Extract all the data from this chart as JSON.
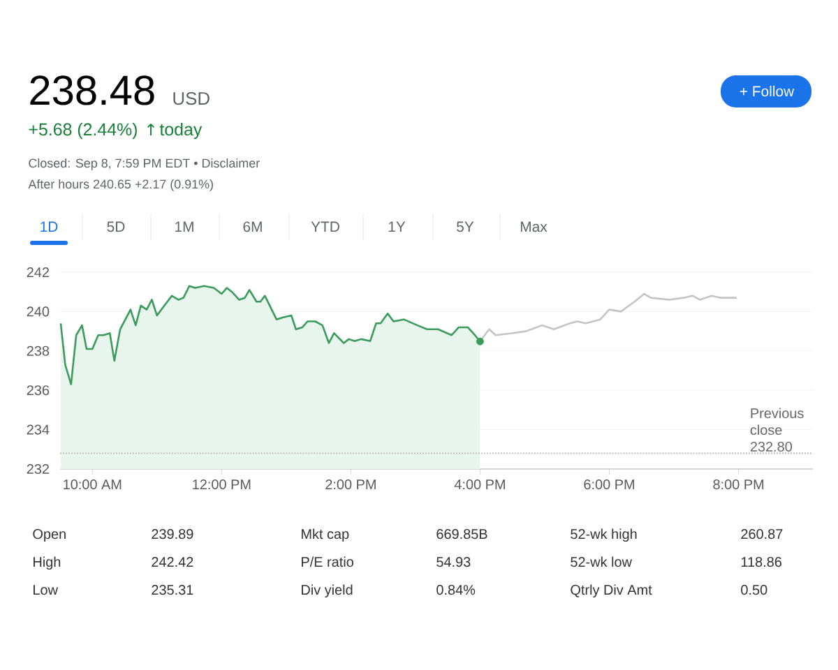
{
  "chart_data": {
    "type": "line",
    "title": "238.48",
    "annotations": [
      "USD",
      "+5.68 (2.44%)",
      "↑",
      "today",
      "Closed: Sep 8, 7:59 PM EDT • Disclaimer",
      "After hours 240.65 +2.17 (0.91%)",
      "+ Follow",
      "1D",
      "5D",
      "1M",
      "6M",
      "YTD",
      "1Y",
      "5Y",
      "Max",
      "Open",
      "239.89",
      "Mkt cap",
      "669.85B",
      "52-wk high",
      "260.87",
      "High",
      "242.42",
      "P/E ratio",
      "54.93",
      "52-wk low",
      "118.86",
      "Low",
      "235.31",
      "Div yield",
      "0.84%",
      "Qtrly Div Amt",
      "0.50"
    ],
    "xlim": [
      9.5,
      21.15
    ],
    "ylim": [
      232,
      242
    ],
    "xticks": [
      {
        "value": 10,
        "label": "10:00 AM"
      },
      {
        "value": 12,
        "label": "12:00 PM"
      },
      {
        "value": 14,
        "label": "2:00 PM"
      },
      {
        "value": 16,
        "label": "4:00 PM"
      },
      {
        "value": 18,
        "label": "6:00 PM"
      },
      {
        "value": 20,
        "label": "8:00 PM"
      }
    ],
    "yticks": [
      232,
      234,
      236,
      238,
      240,
      242
    ],
    "grid": "y",
    "ref_lines": [
      {
        "axis": "y",
        "value": 232.8,
        "label": "Previous close 232.80",
        "color": "#bdbdbd",
        "line_style": "dotted"
      }
    ],
    "series": [
      {
        "type": "area",
        "color": "#3a9b5c",
        "x": [
          9.51,
          9.58,
          9.67,
          9.75,
          9.84,
          9.91,
          10.0,
          10.09,
          10.17,
          10.27,
          10.34,
          10.43,
          10.59,
          10.67,
          10.75,
          10.84,
          10.92,
          11.0,
          11.09,
          11.23,
          11.33,
          11.41,
          11.5,
          11.59,
          11.73,
          11.88,
          12.0,
          12.08,
          12.16,
          12.27,
          12.36,
          12.43,
          12.54,
          12.6,
          12.67,
          12.85,
          12.95,
          13.08,
          13.15,
          13.25,
          13.33,
          13.45,
          13.56,
          13.66,
          13.74,
          13.89,
          13.97,
          14.06,
          14.16,
          14.3,
          14.39,
          14.46,
          14.57,
          14.66,
          14.82,
          15.03,
          15.18,
          15.35,
          15.56,
          15.67,
          15.81,
          15.92,
          16.0
        ],
        "values": [
          239.4,
          237.3,
          236.3,
          238.8,
          239.3,
          238.1,
          238.1,
          238.8,
          238.8,
          238.9,
          237.5,
          239.1,
          240.1,
          239.3,
          240.3,
          240.1,
          240.6,
          239.8,
          240.2,
          240.8,
          240.6,
          240.7,
          241.3,
          241.2,
          241.3,
          241.2,
          240.9,
          241.2,
          241.0,
          240.6,
          240.7,
          241.1,
          240.5,
          240.5,
          240.8,
          239.6,
          239.7,
          239.8,
          239.1,
          239.2,
          239.5,
          239.5,
          239.3,
          238.4,
          238.9,
          238.4,
          238.6,
          238.5,
          238.6,
          238.5,
          239.4,
          239.4,
          239.9,
          239.5,
          239.6,
          239.3,
          239.1,
          239.1,
          238.8,
          239.2,
          239.2,
          238.8,
          238.48
        ]
      },
      {
        "color": "#c4c4c4",
        "x": [
          16.0,
          16.14,
          16.24,
          16.49,
          16.71,
          16.96,
          17.14,
          17.39,
          17.5,
          17.64,
          17.86,
          18.0,
          18.18,
          18.39,
          18.54,
          18.64,
          18.93,
          19.15,
          19.29,
          19.4,
          19.58,
          19.72,
          19.97
        ],
        "values": [
          238.48,
          239.1,
          238.8,
          238.9,
          239.0,
          239.3,
          239.1,
          239.4,
          239.5,
          239.4,
          239.6,
          240.1,
          240.0,
          240.5,
          240.9,
          240.7,
          240.6,
          240.7,
          240.8,
          240.6,
          240.8,
          240.7,
          240.7
        ]
      }
    ]
  }
}
